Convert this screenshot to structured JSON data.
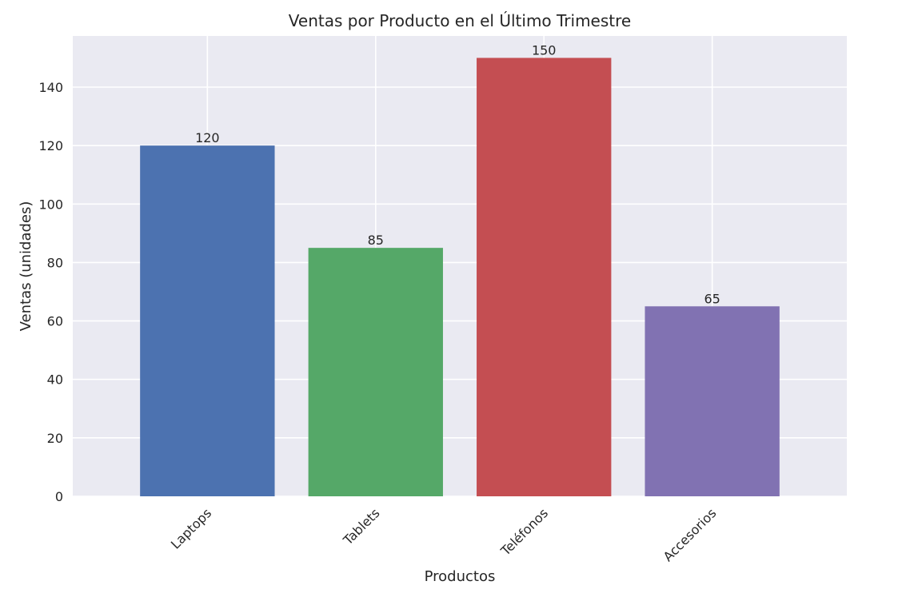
{
  "chart_data": {
    "type": "bar",
    "title": "Ventas por Producto en el Último Trimestre",
    "xlabel": "Productos",
    "ylabel": "Ventas (unidades)",
    "categories": [
      "Laptops",
      "Tablets",
      "Teléfonos",
      "Accesorios"
    ],
    "values": [
      120,
      85,
      150,
      65
    ],
    "colors": [
      "#4c72b0",
      "#55a868",
      "#c44e52",
      "#8172b2"
    ],
    "ylim": [
      0,
      157.5
    ],
    "yticks": [
      0,
      20,
      40,
      60,
      80,
      100,
      120,
      140
    ],
    "grid": true,
    "style": {
      "plot_background": "#eaeaf2",
      "grid_color": "#ffffff",
      "text_color": "#262626"
    }
  }
}
